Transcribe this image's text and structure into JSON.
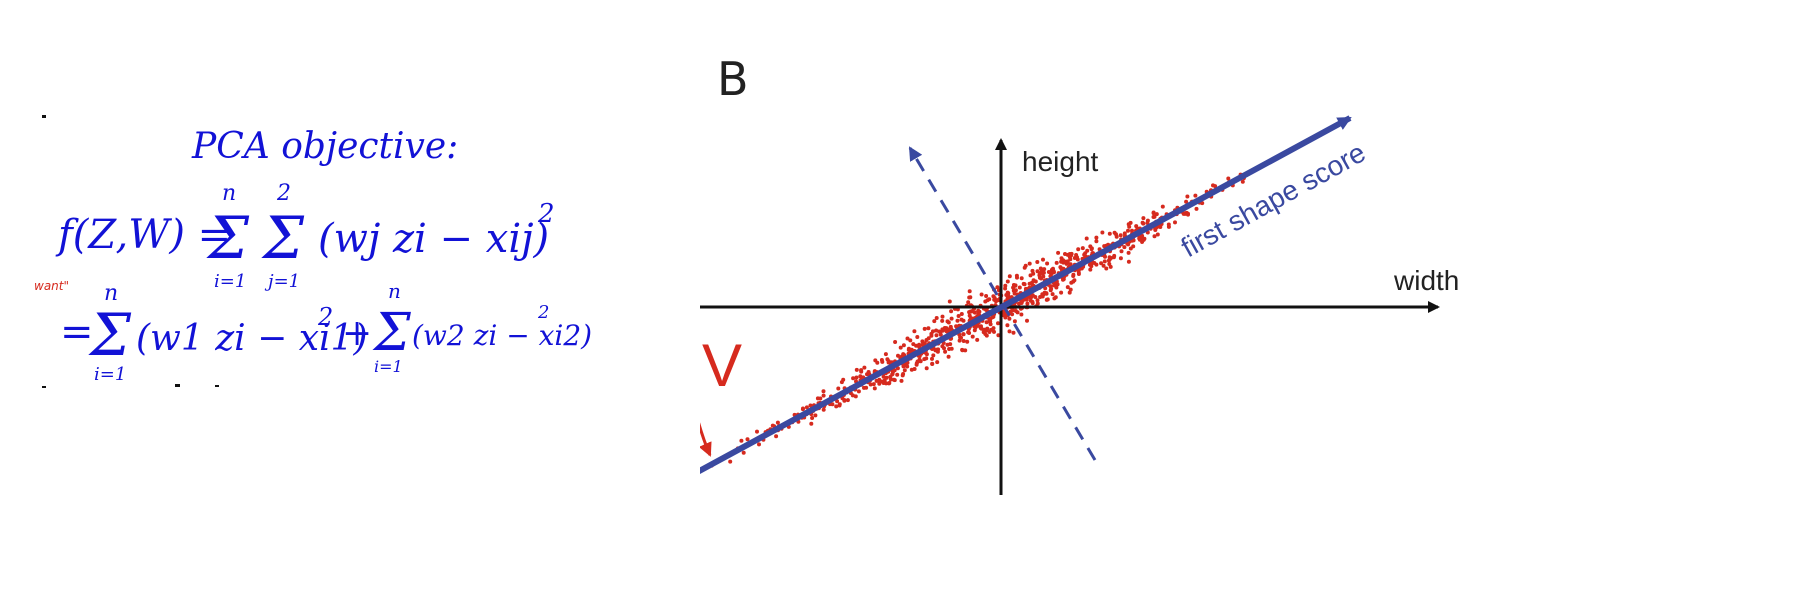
{
  "notes": {
    "title": "PCA objective:",
    "margin_note": "want\"",
    "line1": {
      "lhs": "f(Z,W) =",
      "sum1_top": "n",
      "sum1_bottom": "i=1",
      "sum2_top": "2",
      "sum2_bottom": "j=1",
      "term": "(wj zi − xij)",
      "power": "2"
    },
    "line2": {
      "eq": "=",
      "sum_top": "n",
      "sum_bottom": "i=1",
      "term1": "(w1 zi − xi1)",
      "power1": "2",
      "plus": "+",
      "sum2_top": "n",
      "sum2_bottom": "i=1",
      "term2": "(w2 zi − xi2)",
      "power2": "2"
    },
    "colors": {
      "ink": "#1212d6",
      "margin_ink": "#d62a1e"
    }
  },
  "figure": {
    "panel_label": "B",
    "y_axis_label": "height",
    "x_axis_label": "width",
    "line_label": "first shape score",
    "angle_label": "V",
    "colors": {
      "axes": "#111111",
      "principal_line": "#3a49a0",
      "points": "#d62a1e",
      "angle_arrow": "#d62a1e"
    },
    "icons": {
      "principal-axis": "solid-arrow-line",
      "second-axis": "dashed-arrow-line"
    }
  }
}
